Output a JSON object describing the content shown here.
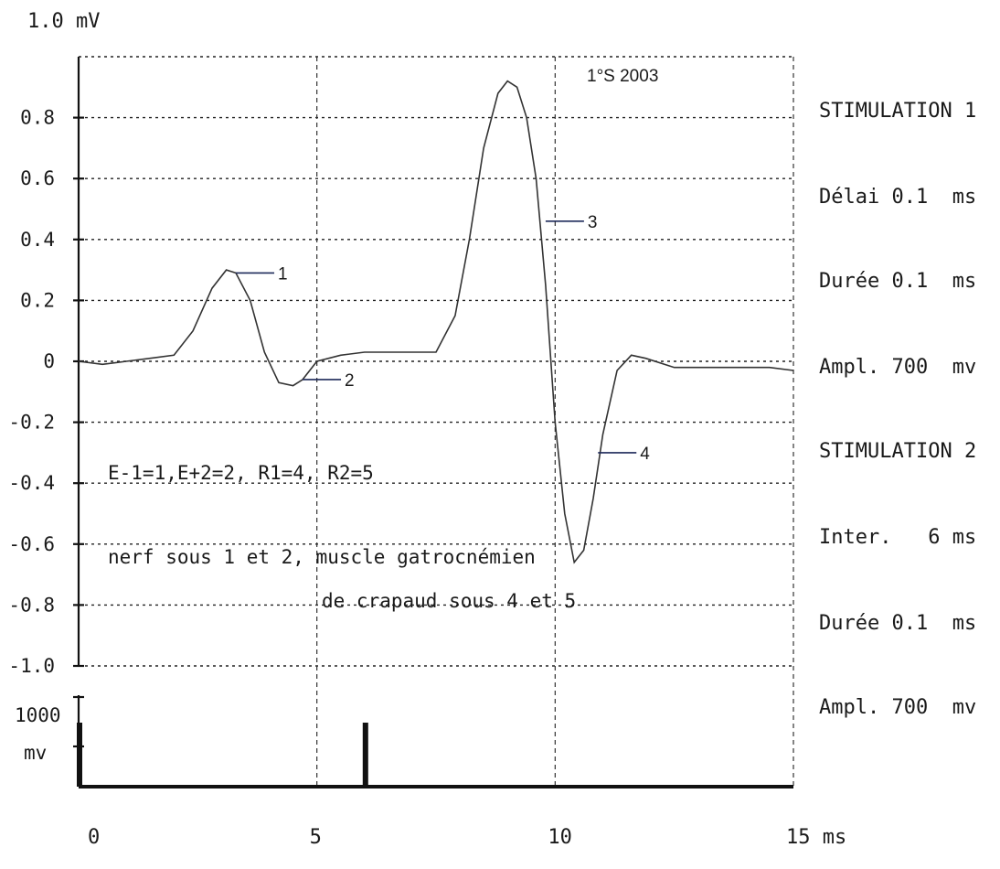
{
  "chart_data": {
    "type": "line",
    "title": "",
    "xlabel": "ms",
    "ylabel": "",
    "y_top_label": "1.0 mV",
    "x_ticks": [
      "0",
      "5",
      "10",
      "15 ms"
    ],
    "y_ticks": [
      "0.8",
      "0.6",
      "0.4",
      "0.2",
      "0",
      "-0.2",
      "-0.4",
      "-0.6",
      "-0.8",
      "-1.0"
    ],
    "xlim": [
      0,
      15
    ],
    "ylim": [
      -1.0,
      1.0
    ],
    "grid": true,
    "series": [
      {
        "x": [
          0,
          0.5,
          1,
          1.5,
          2,
          2.4,
          2.8,
          3.1,
          3.3,
          3.6,
          3.9,
          4.2,
          4.5,
          4.7,
          5.0,
          5.5,
          6.0,
          6.5,
          7.0,
          7.5,
          7.9,
          8.2,
          8.5,
          8.8,
          9.0,
          9.2,
          9.4,
          9.6,
          9.8,
          10.0,
          10.2,
          10.4,
          10.6,
          10.8,
          11.0,
          11.3,
          11.6,
          11.9,
          12.5,
          13.5,
          14.5,
          15
        ],
        "values": [
          0,
          -0.01,
          0,
          0.01,
          0.02,
          0.1,
          0.24,
          0.3,
          0.29,
          0.2,
          0.03,
          -0.07,
          -0.08,
          -0.06,
          0.0,
          0.02,
          0.03,
          0.03,
          0.03,
          0.03,
          0.15,
          0.4,
          0.7,
          0.88,
          0.92,
          0.9,
          0.8,
          0.6,
          0.25,
          -0.2,
          -0.5,
          -0.66,
          -0.62,
          -0.45,
          -0.24,
          -0.03,
          0.02,
          0.01,
          -0.02,
          -0.02,
          -0.02,
          -0.03
        ]
      }
    ],
    "annotations": [
      {
        "label": "1",
        "x": 3.3,
        "y": 0.29
      },
      {
        "label": "2",
        "x": 4.7,
        "y": -0.06
      },
      {
        "label": "3",
        "x": 9.8,
        "y": 0.46
      },
      {
        "label": "4",
        "x": 10.9,
        "y": -0.3
      }
    ],
    "stimulus": {
      "ylabel_value": "1000",
      "ylabel_unit": "mv",
      "pulse_times_ms": [
        0,
        6
      ]
    }
  },
  "header_note": "1°S 2003",
  "notes": [
    "E-1=1,E+2=2, R1=4, R2=5",
    "nerf sous 1 et 2, muscle gatrocnémien",
    "de crapaud sous 4 et 5"
  ],
  "settings": [
    "STIMULATION 1",
    "Délai 0.1  ms",
    "Durée 0.1  ms",
    "Ampl. 700  mv",
    "STIMULATION 2",
    "Inter.   6 ms",
    "Durée 0.1  ms",
    "Ampl. 700  mv"
  ]
}
